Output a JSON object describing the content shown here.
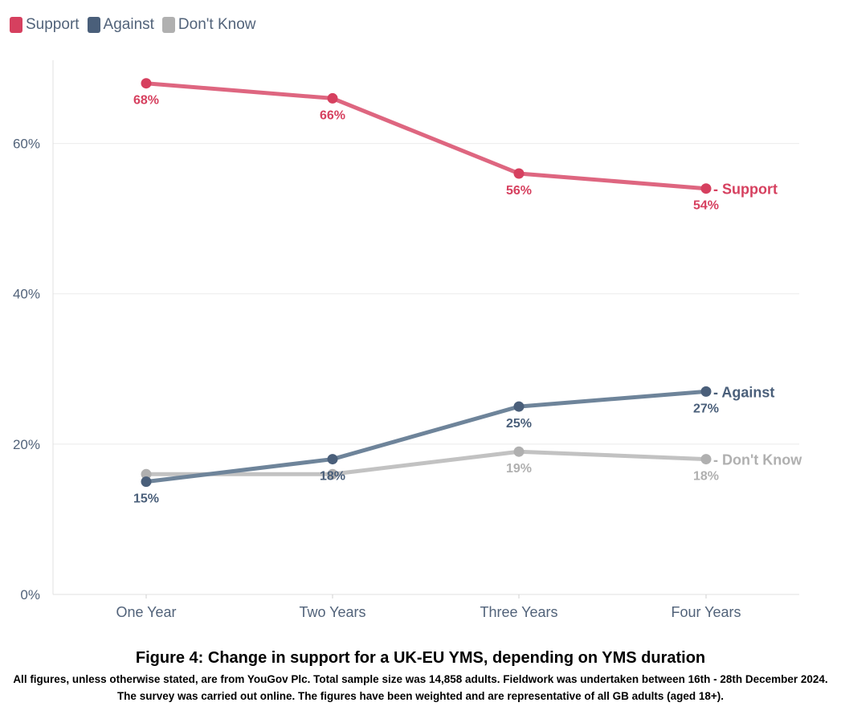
{
  "chart_data": {
    "type": "line",
    "title": "Figure 4: Change in support for a UK-EU YMS, depending on YMS duration",
    "note": "All figures, unless otherwise stated, are from YouGov Plc. Total sample size was 14,858 adults. Fieldwork was undertaken between 16th - 28th December 2024. The survey was carried out online. The figures have been weighted and are representative of all GB adults (aged 18+).",
    "categories": [
      "One Year",
      "Two Years",
      "Three Years",
      "Four Years"
    ],
    "ylim": [
      0,
      70
    ],
    "yticks": [
      0,
      20,
      40,
      60
    ],
    "ytick_labels": [
      "0%",
      "20%",
      "40%",
      "60%"
    ],
    "legend_position": "top-left",
    "series": [
      {
        "name": "Support",
        "values": [
          68,
          66,
          56,
          54
        ],
        "labels": [
          "68%",
          "66%",
          "56%",
          "54%"
        ],
        "color": "#d6405f",
        "line_color": "#de6680",
        "end_label": "- Support"
      },
      {
        "name": "Against",
        "values": [
          15,
          18,
          25,
          27
        ],
        "labels": [
          "15%",
          "18%",
          "25%",
          "27%"
        ],
        "color": "#4a5f7a",
        "line_color": "#6e849a",
        "end_label": "- Against"
      },
      {
        "name": "Don't Know",
        "values": [
          16,
          16,
          19,
          18
        ],
        "labels": [
          "",
          "",
          "19%",
          "18%"
        ],
        "color": "#b0b0b0",
        "line_color": "#c2c2c2",
        "end_label": "- Don't Know"
      }
    ],
    "axis_color": "#52637a",
    "grid_color": "#ebebeb"
  }
}
